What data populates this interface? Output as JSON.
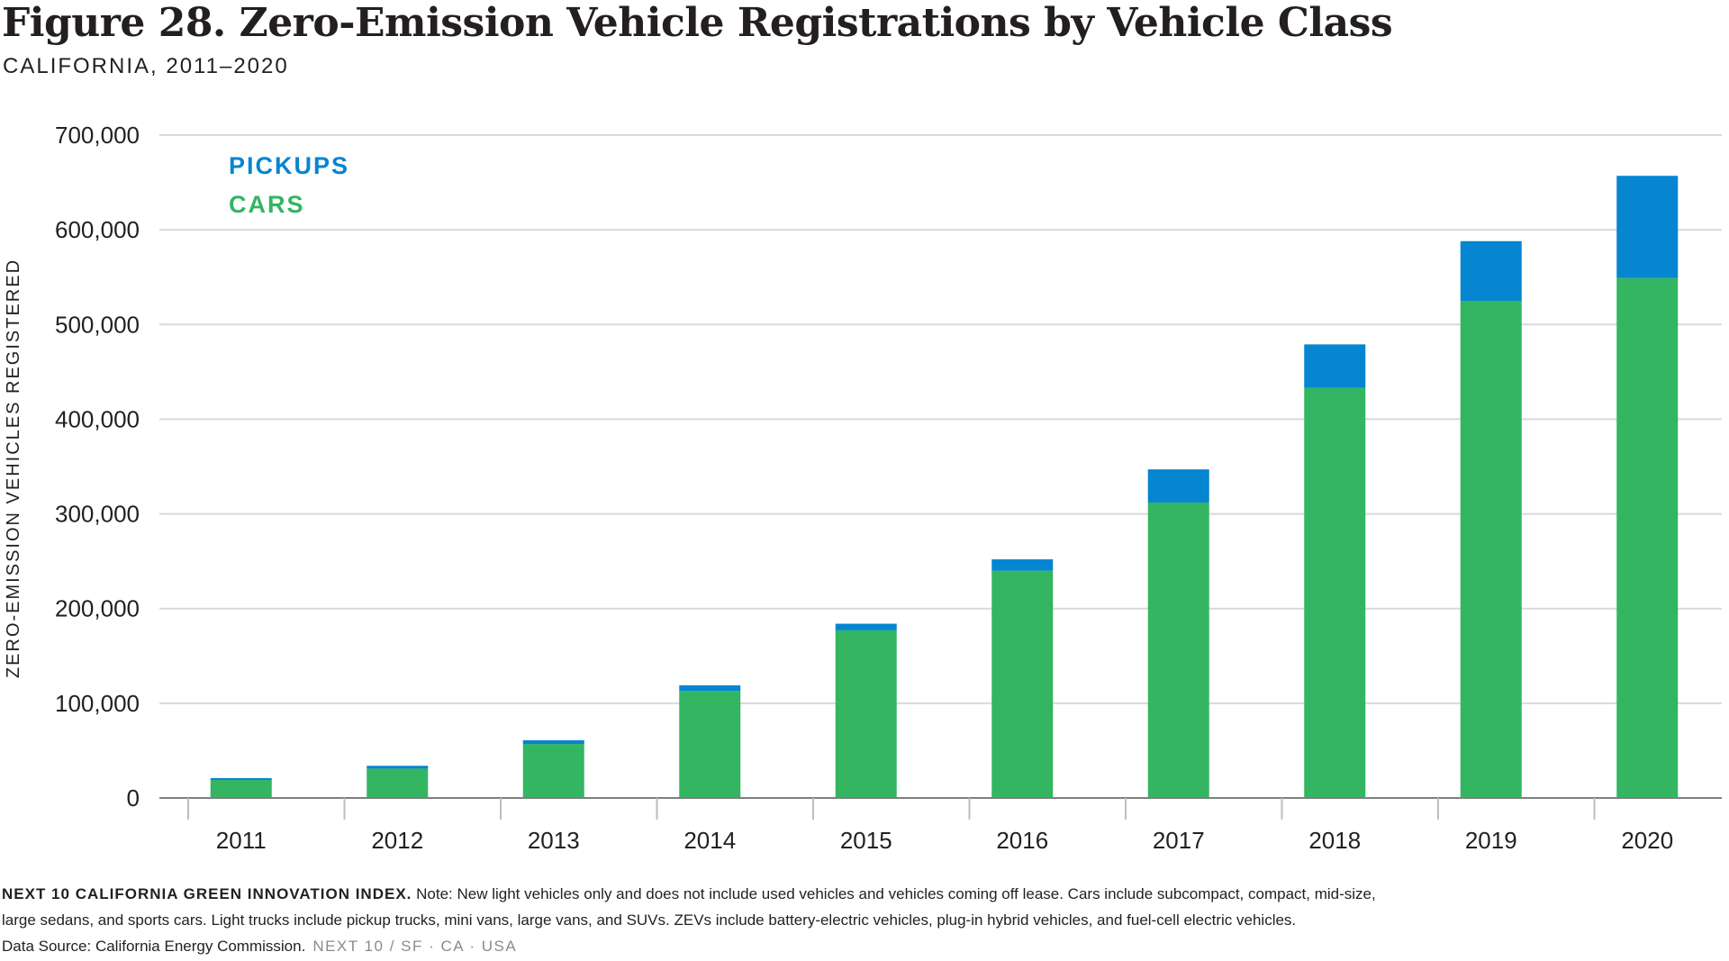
{
  "header": {
    "title": "Figure 28. Zero-Emission Vehicle Registrations by Vehicle Class",
    "subtitle": "CALIFORNIA, 2011–2020"
  },
  "footer": {
    "org": "NEXT 10 CALIFORNIA GREEN INNOVATION INDEX.",
    "note_line1": "Note: New light vehicles only and does not include used vehicles and vehicles coming off lease. Cars include subcompact, compact, mid-size,",
    "note_line2": "large sedans, and sports cars. Light trucks include pickup trucks, mini vans, large vans, and SUVs. ZEVs include battery-electric vehicles, plug-in hybrid vehicles, and fuel-cell electric vehicles.",
    "source": "Data Source: California Energy Commission.",
    "brand": "NEXT 10  /  SF · CA · USA"
  },
  "colors": {
    "cars": "#33b562",
    "pickups": "#0685d1",
    "gridline": "#d9d9d9",
    "axis": "#7f7f7f",
    "text": "#231f20"
  },
  "chart_data": {
    "type": "bar",
    "stacked": true,
    "title": "Figure 28. Zero-Emission Vehicle Registrations by Vehicle Class",
    "subtitle": "CALIFORNIA, 2011–2020",
    "xlabel": "",
    "ylabel": "ZERO-EMISSION VEHICLES REGISTERED",
    "ylim": [
      0,
      700000
    ],
    "yticks": [
      0,
      100000,
      200000,
      300000,
      400000,
      500000,
      600000,
      700000
    ],
    "ytick_labels": [
      "0",
      "100,000",
      "200,000",
      "300,000",
      "400,000",
      "500,000",
      "600,000",
      "700,000"
    ],
    "grid": true,
    "legend_position": "top-left",
    "categories": [
      "2011",
      "2012",
      "2013",
      "2014",
      "2015",
      "2016",
      "2017",
      "2018",
      "2019",
      "2020"
    ],
    "series": [
      {
        "name": "CARS",
        "color": "#33b562",
        "values": [
          19000,
          31000,
          57000,
          113000,
          177000,
          240000,
          312000,
          433000,
          525000,
          549000
        ]
      },
      {
        "name": "PICKUPS",
        "color": "#0685d1",
        "values": [
          2000,
          3000,
          4000,
          6000,
          7000,
          12000,
          35000,
          46000,
          63000,
          108000
        ]
      }
    ]
  }
}
